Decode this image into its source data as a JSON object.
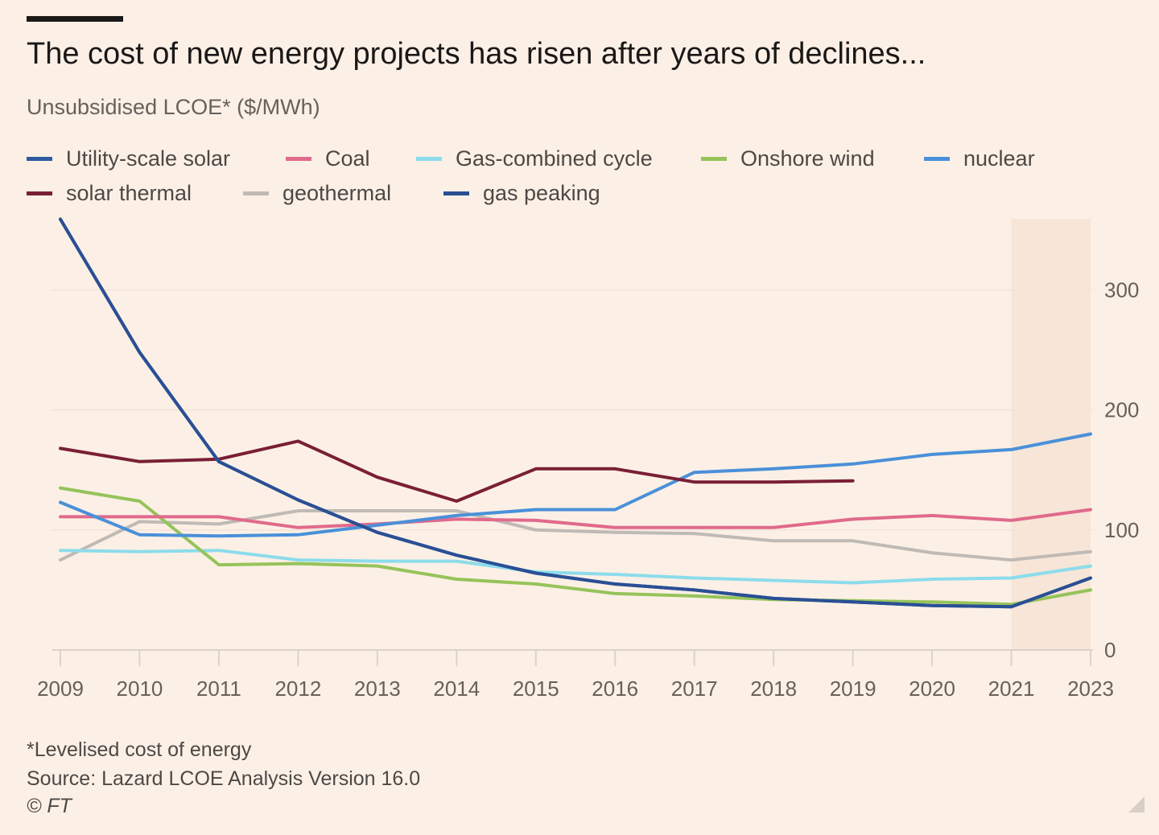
{
  "header": {
    "title": "The cost of new energy projects has risen after years of declines...",
    "subtitle": "Unsubsidised LCOE* ($/MWh)"
  },
  "legend": [
    {
      "label": "Utility-scale solar",
      "color": "#2e5aa2"
    },
    {
      "label": "Coal",
      "color": "#e06a8c"
    },
    {
      "label": "Gas-combined cycle",
      "color": "#8cdceb"
    },
    {
      "label": "Onshore wind",
      "color": "#96c35a"
    },
    {
      "label": "nuclear",
      "color": "#4a90d9"
    },
    {
      "label": "solar thermal",
      "color": "#7a1f35"
    },
    {
      "label": "geothermal",
      "color": "#bfbab5"
    },
    {
      "label": "gas peaking",
      "color": "#2a4f94"
    }
  ],
  "chart_data": {
    "type": "line",
    "title": "The cost of new energy projects has risen after years of declines...",
    "subtitle": "Unsubsidised LCOE* ($/MWh)",
    "x": [
      "2009",
      "2010",
      "2011",
      "2012",
      "2013",
      "2014",
      "2015",
      "2016",
      "2017",
      "2018",
      "2019",
      "2020",
      "2021",
      "2023"
    ],
    "y_ticks": [
      0,
      100,
      200,
      300
    ],
    "ylim": [
      0,
      360
    ],
    "y_axis_side": "right",
    "grid": true,
    "shaded_region": [
      "2021",
      "2023"
    ],
    "legend_placement": "top",
    "series": [
      {
        "name": "Utility-scale solar",
        "color": "#2e5aa2",
        "values": [
          359,
          248,
          157,
          125,
          98,
          79,
          64,
          55,
          50,
          43,
          40,
          37,
          36,
          60
        ]
      },
      {
        "name": "Coal",
        "color": "#e06a8c",
        "values": [
          111,
          111,
          111,
          102,
          105,
          109,
          108,
          102,
          102,
          102,
          109,
          112,
          108,
          117
        ]
      },
      {
        "name": "Gas-combined cycle",
        "color": "#8cdceb",
        "values": [
          83,
          82,
          83,
          75,
          74,
          74,
          65,
          63,
          60,
          58,
          56,
          59,
          60,
          70
        ]
      },
      {
        "name": "Onshore wind",
        "color": "#96c35a",
        "values": [
          135,
          124,
          71,
          72,
          70,
          59,
          55,
          47,
          45,
          42,
          41,
          40,
          38,
          50
        ]
      },
      {
        "name": "nuclear",
        "color": "#4a90d9",
        "values": [
          123,
          96,
          95,
          96,
          104,
          112,
          117,
          117,
          148,
          151,
          155,
          163,
          167,
          180
        ]
      },
      {
        "name": "solar thermal",
        "color": "#7a1f35",
        "values": [
          168,
          157,
          159,
          174,
          144,
          124,
          151,
          151,
          140,
          140,
          141,
          null,
          null,
          null
        ]
      },
      {
        "name": "geothermal",
        "color": "#bfbab5",
        "values": [
          75,
          107,
          105,
          116,
          116,
          116,
          100,
          98,
          97,
          91,
          91,
          81,
          75,
          82
        ]
      },
      {
        "name": "gas peaking",
        "color": "#2a4f94",
        "values": [
          359,
          248,
          157,
          125,
          98,
          79,
          64,
          55,
          50,
          43,
          40,
          37,
          36,
          60
        ]
      }
    ]
  },
  "footer": {
    "footnote": "*Levelised cost of energy",
    "source": "Source: Lazard LCOE Analysis Version 16.0",
    "copyright": "© FT"
  }
}
